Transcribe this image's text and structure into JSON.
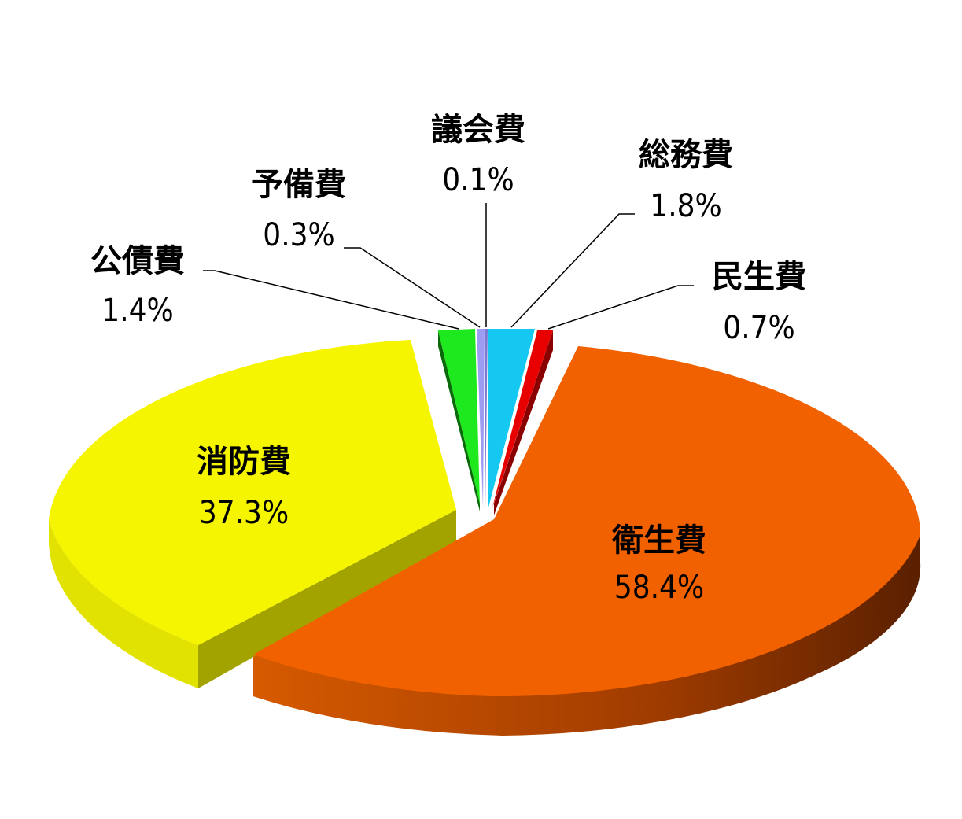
{
  "chart_data": {
    "type": "pie",
    "title": "",
    "slices": [
      {
        "label": "衛生費",
        "value": 58.4,
        "value_label": "58.4%",
        "color": "#f26100",
        "side_color": "#b84300"
      },
      {
        "label": "消防費",
        "value": 37.3,
        "value_label": "37.3%",
        "color": "#f5f500",
        "side_color": "#b7b600"
      },
      {
        "label": "公債費",
        "value": 1.4,
        "value_label": "1.4%",
        "color": "#1ee81e",
        "side_color": "#0a6a0a"
      },
      {
        "label": "予備費",
        "value": 0.3,
        "value_label": "0.3%",
        "color": "#9c9cf2",
        "side_color": "#5a5aa0"
      },
      {
        "label": "議会費",
        "value": 0.1,
        "value_label": "0.1%",
        "color": "#7a7ad0",
        "side_color": "#4a4a8a"
      },
      {
        "label": "総務費",
        "value": 1.8,
        "value_label": "1.8%",
        "color": "#14c8f2",
        "side_color": "#0a7ea0"
      },
      {
        "label": "民生費",
        "value": 0.7,
        "value_label": "0.7%",
        "color": "#e80000",
        "side_color": "#8a0000"
      }
    ],
    "legend": "none"
  }
}
